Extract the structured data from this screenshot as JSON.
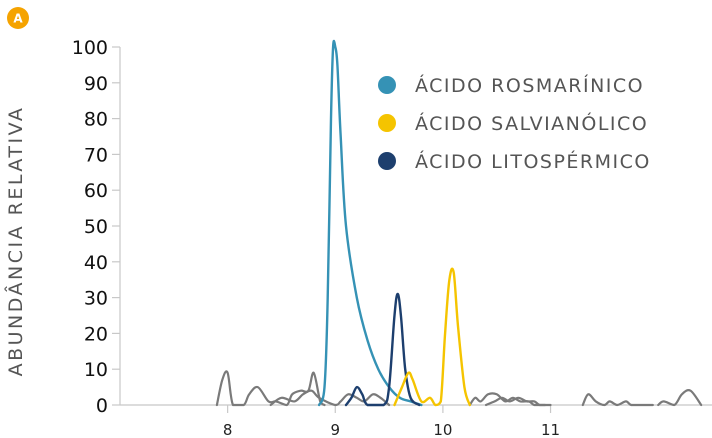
{
  "panel": {
    "label": "A",
    "color": "#f5a300"
  },
  "chart_data": {
    "type": "line",
    "title": "",
    "xlabel": "",
    "ylabel": "ABUNDÂNCIA RELATIVA",
    "xlim": [
      7.0,
      12.5
    ],
    "ylim": [
      0,
      100
    ],
    "xticks": [
      "8",
      "9",
      "10",
      "11"
    ],
    "xtick_values": [
      8,
      9,
      10,
      11
    ],
    "yticks": [
      "0",
      "10",
      "20",
      "30",
      "40",
      "50",
      "60",
      "70",
      "80",
      "90",
      "100"
    ],
    "ytick_values": [
      0,
      10,
      20,
      30,
      40,
      50,
      60,
      70,
      80,
      90,
      100
    ],
    "grid": false,
    "legend_position": "top-right",
    "series": [
      {
        "name": "ÁCIDO ROSMARÍNICO",
        "color": "#3592b5",
        "x": [
          8.85,
          8.9,
          8.93,
          8.96,
          8.98,
          9.0,
          9.02,
          9.05,
          9.1,
          9.2,
          9.3,
          9.4,
          9.5,
          9.6,
          9.7,
          9.8
        ],
        "y": [
          0,
          5,
          30,
          80,
          100,
          100,
          95,
          75,
          50,
          30,
          18,
          10,
          5,
          2,
          1,
          0
        ]
      },
      {
        "name": "ÁCIDO SALVIANÓLICO",
        "color": "#f5c400",
        "x": [
          9.55,
          9.62,
          9.68,
          9.72,
          9.8,
          9.88,
          9.93,
          9.98,
          10.02,
          10.06,
          10.1,
          10.14,
          10.2,
          10.25
        ],
        "y": [
          0,
          5,
          9,
          7,
          1,
          2,
          0,
          1,
          20,
          35,
          37,
          22,
          5,
          0
        ]
      },
      {
        "name": "ÁCIDO LITOSPÉRMICO",
        "color": "#1d3f6e",
        "x": [
          9.1,
          9.15,
          9.2,
          9.25,
          9.3,
          9.45,
          9.5,
          9.55,
          9.58,
          9.61,
          9.65,
          9.7,
          9.78
        ],
        "y": [
          0,
          2,
          5,
          3,
          0,
          0,
          5,
          25,
          31,
          25,
          10,
          2,
          0
        ]
      },
      {
        "x": [
          7.9,
          7.95,
          8.0,
          8.05,
          8.15,
          8.2,
          8.28,
          8.38,
          8.45,
          8.55,
          8.6,
          8.68,
          8.75,
          8.8,
          8.86,
          8.9
        ],
        "y": [
          0,
          7,
          9,
          0,
          0,
          3,
          5,
          1,
          1,
          0,
          3,
          4,
          4,
          9,
          1,
          0
        ]
      },
      {
        "x": [
          8.4,
          8.5,
          8.62,
          8.7,
          8.78,
          8.85,
          9.0,
          9.05,
          9.12,
          9.2,
          9.27,
          9.35,
          9.42,
          9.5
        ],
        "y": [
          0,
          2,
          1,
          3,
          4,
          2,
          0,
          1,
          3,
          2,
          1,
          3,
          2,
          0
        ]
      },
      {
        "x": [
          10.25,
          10.3,
          10.35,
          10.42,
          10.5,
          10.58,
          10.65,
          10.72,
          10.8,
          10.85,
          10.95
        ],
        "y": [
          0,
          2,
          1,
          3,
          3,
          1,
          2,
          1,
          1,
          0,
          0
        ]
      },
      {
        "x": [
          10.4,
          10.48,
          10.55,
          10.62,
          10.7,
          10.78,
          10.85,
          10.9,
          11.0
        ],
        "y": [
          0,
          1,
          2,
          1,
          2,
          1,
          1,
          0,
          0
        ]
      },
      {
        "x": [
          11.3,
          11.35,
          11.42,
          11.5,
          11.55,
          11.62,
          11.7,
          11.75,
          11.85,
          11.95
        ],
        "y": [
          0,
          3,
          1,
          0,
          1,
          0,
          1,
          0,
          0,
          0
        ]
      },
      {
        "x": [
          12.0,
          12.05,
          12.15,
          12.22,
          12.3,
          12.4
        ],
        "y": [
          0,
          1,
          0,
          3,
          4,
          0
        ]
      }
    ]
  }
}
